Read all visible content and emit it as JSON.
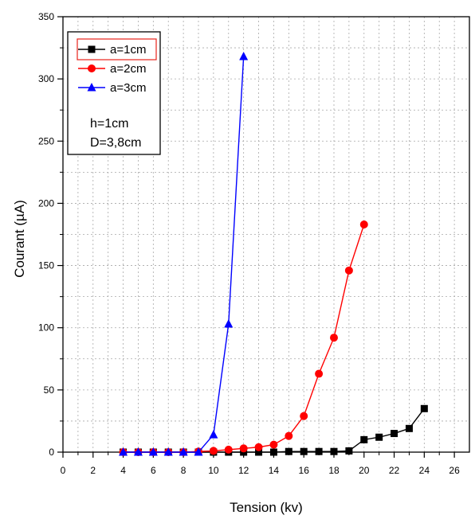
{
  "chart_data": {
    "type": "line",
    "xlabel": "Tension (kv)",
    "ylabel": "Courant (µA)",
    "xlim": [
      0,
      27
    ],
    "ylim": [
      0,
      350
    ],
    "x_ticks": [
      0,
      2,
      4,
      6,
      8,
      10,
      12,
      14,
      16,
      18,
      20,
      22,
      24,
      26
    ],
    "y_ticks": [
      0,
      50,
      100,
      150,
      200,
      250,
      300,
      350
    ],
    "grid": true,
    "legend_position": "top-left",
    "series": [
      {
        "name": "a=1cm",
        "color": "#000000",
        "marker": "square",
        "x": [
          4,
          5,
          6,
          7,
          8,
          9,
          10,
          11,
          12,
          13,
          14,
          15,
          16,
          17,
          18,
          19,
          20,
          21,
          22,
          23,
          24
        ],
        "y": [
          0,
          0,
          0,
          0,
          0,
          0,
          0,
          0,
          0,
          0,
          0,
          0.5,
          0.5,
          0.5,
          0.5,
          1,
          10,
          12,
          15,
          19,
          35
        ]
      },
      {
        "name": "a=2cm",
        "color": "#ff0000",
        "marker": "circle",
        "x": [
          4,
          5,
          6,
          7,
          8,
          9,
          10,
          11,
          12,
          13,
          14,
          15,
          16,
          17,
          18,
          19,
          20
        ],
        "y": [
          0,
          0,
          0,
          0,
          0,
          0.5,
          1,
          2,
          3,
          4,
          6,
          13,
          29,
          63,
          92,
          146,
          183
        ]
      },
      {
        "name": "a=3cm",
        "color": "#0000ff",
        "marker": "triangle",
        "x": [
          4,
          5,
          6,
          7,
          8,
          9,
          10,
          11,
          12
        ],
        "y": [
          0,
          0,
          0,
          0,
          0,
          0,
          14,
          103,
          318
        ]
      }
    ],
    "annotations": [
      "h=1cm",
      "D=3,8cm"
    ]
  }
}
